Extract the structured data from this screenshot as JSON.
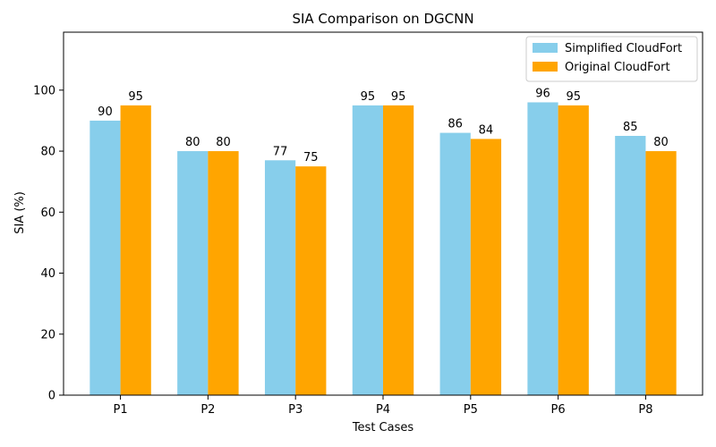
{
  "chart_data": {
    "type": "bar",
    "title": "SIA Comparison on DGCNN",
    "xlabel": "Test Cases",
    "ylabel": "SIA (%)",
    "ylim": [
      0,
      119
    ],
    "yticks": [
      0,
      20,
      40,
      60,
      80,
      100
    ],
    "categories": [
      "P1",
      "P2",
      "P3",
      "P4",
      "P5",
      "P6",
      "P8"
    ],
    "series": [
      {
        "name": "Simplified CloudFort",
        "color": "#87ceeb",
        "values": [
          90,
          80,
          77,
          95,
          86,
          96,
          85
        ]
      },
      {
        "name": "Original CloudFort",
        "color": "#ffa500",
        "values": [
          95,
          80,
          75,
          95,
          84,
          95,
          80
        ]
      }
    ],
    "legend_position": "top-right",
    "grid": false
  }
}
